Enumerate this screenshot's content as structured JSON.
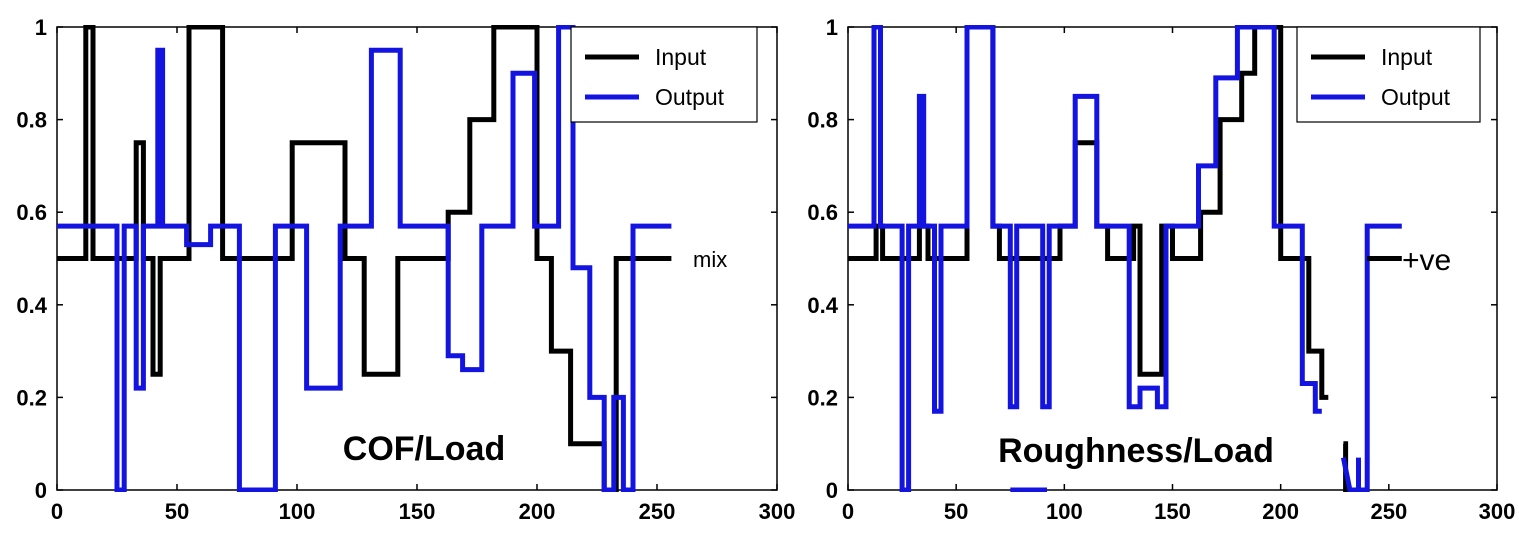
{
  "chart_data": [
    {
      "type": "line",
      "xlim": [
        0,
        300
      ],
      "ylim": [
        0,
        1
      ],
      "xticks": [
        0,
        50,
        100,
        150,
        200,
        250,
        300
      ],
      "yticks": [
        0,
        0.2,
        0.4,
        0.6,
        0.8,
        1
      ],
      "legend_position": "top-right",
      "annotation": "COF/Load",
      "side_label": "mix",
      "series": [
        {
          "name": "Input",
          "color": "#000000",
          "points": [
            [
              0,
              0.5
            ],
            [
              12,
              0.5
            ],
            [
              12,
              1
            ],
            [
              15,
              1
            ],
            [
              15,
              0.5
            ],
            [
              33,
              0.5
            ],
            [
              33,
              0.75
            ],
            [
              36,
              0.75
            ],
            [
              36,
              0.5
            ],
            [
              40,
              0.5
            ],
            [
              40,
              0.25
            ],
            [
              43,
              0.25
            ],
            [
              43,
              0.5
            ],
            [
              55,
              0.5
            ],
            [
              55,
              1
            ],
            [
              69,
              1
            ],
            [
              69,
              0.5
            ],
            [
              98,
              0.5
            ],
            [
              98,
              0.75
            ],
            [
              120,
              0.75
            ],
            [
              120,
              0.5
            ],
            [
              128,
              0.5
            ],
            [
              128,
              0.25
            ],
            [
              142,
              0.25
            ],
            [
              142,
              0.5
            ],
            [
              163,
              0.5
            ],
            [
              163,
              0.6
            ],
            [
              172,
              0.6
            ],
            [
              172,
              0.8
            ],
            [
              182,
              0.8
            ],
            [
              182,
              1
            ],
            [
              200,
              1
            ],
            [
              200,
              0.5
            ],
            [
              206,
              0.5
            ],
            [
              206,
              0.3
            ],
            [
              214,
              0.3
            ],
            [
              214,
              0.1
            ],
            [
              228,
              0.1
            ],
            [
              228,
              0
            ],
            [
              233,
              0
            ],
            [
              233,
              0.5
            ],
            [
              256,
              0.5
            ]
          ]
        },
        {
          "name": "Output",
          "color": "#1414e0",
          "points": [
            [
              0,
              0.57
            ],
            [
              25,
              0.57
            ],
            [
              25,
              0
            ],
            [
              28,
              0
            ],
            [
              28,
              0.57
            ],
            [
              33,
              0.57
            ],
            [
              33,
              0.22
            ],
            [
              36,
              0.22
            ],
            [
              36,
              0.57
            ],
            [
              42,
              0.57
            ],
            [
              42,
              0.95
            ],
            [
              44,
              0.95
            ],
            [
              44,
              0.57
            ],
            [
              54,
              0.57
            ],
            [
              54,
              0.53
            ],
            [
              64,
              0.53
            ],
            [
              64,
              0.57
            ],
            [
              76,
              0.57
            ],
            [
              76,
              0
            ],
            [
              91,
              0
            ],
            [
              91,
              0.57
            ],
            [
              104,
              0.57
            ],
            [
              104,
              0.22
            ],
            [
              118,
              0.22
            ],
            [
              118,
              0.57
            ],
            [
              131,
              0.57
            ],
            [
              131,
              0.95
            ],
            [
              143,
              0.95
            ],
            [
              143,
              0.57
            ],
            [
              163,
              0.57
            ],
            [
              163,
              0.29
            ],
            [
              169,
              0.29
            ],
            [
              169,
              0.26
            ],
            [
              177,
              0.26
            ],
            [
              177,
              0.57
            ],
            [
              190,
              0.57
            ],
            [
              190,
              0.9
            ],
            [
              199,
              0.9
            ],
            [
              199,
              0.57
            ],
            [
              209,
              0.57
            ],
            [
              209,
              1
            ],
            [
              215,
              1
            ],
            [
              215,
              0.48
            ],
            [
              222,
              0.48
            ],
            [
              222,
              0.2
            ],
            [
              228,
              0.2
            ],
            [
              228,
              0
            ],
            [
              232,
              0
            ],
            [
              232,
              0.2
            ],
            [
              236,
              0.2
            ],
            [
              236,
              0
            ],
            [
              240,
              0
            ],
            [
              240,
              0.57
            ],
            [
              256,
              0.57
            ]
          ]
        }
      ]
    },
    {
      "type": "line",
      "xlim": [
        0,
        300
      ],
      "ylim": [
        0,
        1
      ],
      "xticks": [
        0,
        50,
        100,
        150,
        200,
        250,
        300
      ],
      "yticks": [
        0,
        0.2,
        0.4,
        0.6,
        0.8,
        1
      ],
      "legend_position": "top-right",
      "annotation": "Roughness/Load",
      "side_label": "+ve",
      "series": [
        {
          "name": "Input",
          "color": "#000000",
          "points": [
            [
              0,
              0.5
            ],
            [
              13,
              0.5
            ],
            [
              13,
              0.57
            ],
            [
              16,
              0.57
            ],
            [
              16,
              0.5
            ],
            [
              33,
              0.5
            ],
            [
              33,
              0.57
            ],
            [
              37,
              0.57
            ],
            [
              37,
              0.5
            ],
            [
              55,
              0.5
            ],
            [
              55,
              1
            ],
            [
              67,
              1
            ],
            [
              67,
              0.57
            ],
            [
              70,
              0.57
            ],
            [
              70,
              0.5
            ],
            [
              98,
              0.5
            ],
            [
              98,
              0.57
            ],
            [
              105,
              0.57
            ],
            [
              105,
              0.75
            ],
            [
              115,
              0.75
            ],
            [
              115,
              0.57
            ],
            [
              120,
              0.57
            ],
            [
              120,
              0.5
            ],
            [
              132,
              0.5
            ],
            [
              132,
              0.57
            ],
            [
              135,
              0.57
            ],
            [
              135,
              0.25
            ],
            [
              145,
              0.25
            ],
            [
              145,
              0.57
            ],
            [
              150,
              0.57
            ],
            [
              150,
              0.5
            ],
            [
              163,
              0.5
            ],
            [
              163,
              0.6
            ],
            [
              172,
              0.6
            ],
            [
              172,
              0.8
            ],
            [
              182,
              0.8
            ],
            [
              182,
              0.9
            ],
            [
              188,
              0.9
            ],
            [
              188,
              1
            ],
            [
              200,
              1
            ],
            [
              200,
              0.5
            ],
            [
              213,
              0.5
            ],
            [
              213,
              0.3
            ],
            [
              219,
              0.3
            ],
            [
              219,
              0.2
            ],
            [
              222,
              0.2
            ]
          ]
        },
        {
          "name": "Output",
          "color": "#1414e0",
          "points": [
            [
              0,
              0.57
            ],
            [
              12,
              0.57
            ],
            [
              12,
              1
            ],
            [
              15,
              1
            ],
            [
              15,
              0.57
            ],
            [
              25,
              0.57
            ],
            [
              25,
              0
            ],
            [
              28,
              0
            ],
            [
              28,
              0.57
            ],
            [
              33,
              0.57
            ],
            [
              33,
              0.85
            ],
            [
              35,
              0.85
            ],
            [
              35,
              0.57
            ],
            [
              40,
              0.57
            ],
            [
              40,
              0.17
            ],
            [
              43,
              0.17
            ],
            [
              43,
              0.57
            ],
            [
              55,
              0.57
            ],
            [
              55,
              1
            ],
            [
              67,
              1
            ],
            [
              67,
              0.57
            ],
            [
              75,
              0.57
            ],
            [
              75,
              0.18
            ],
            [
              78,
              0.18
            ],
            [
              78,
              0.57
            ],
            [
              90,
              0.57
            ],
            [
              90,
              0.18
            ],
            [
              93,
              0.18
            ],
            [
              93,
              0.57
            ],
            [
              105,
              0.57
            ],
            [
              105,
              0.85
            ],
            [
              115,
              0.85
            ],
            [
              115,
              0.57
            ],
            [
              130,
              0.57
            ],
            [
              130,
              0.18
            ],
            [
              135,
              0.18
            ],
            [
              135,
              0.22
            ],
            [
              143,
              0.22
            ],
            [
              143,
              0.18
            ],
            [
              147,
              0.18
            ],
            [
              147,
              0.57
            ],
            [
              162,
              0.57
            ],
            [
              162,
              0.7
            ],
            [
              170,
              0.7
            ],
            [
              170,
              0.89
            ],
            [
              180,
              0.89
            ],
            [
              180,
              1
            ],
            [
              197,
              1
            ],
            [
              197,
              0.57
            ],
            [
              210,
              0.57
            ],
            [
              210,
              0.23
            ],
            [
              216,
              0.23
            ],
            [
              216,
              0.17
            ],
            [
              219,
              0.17
            ]
          ]
        },
        {
          "name": "",
          "color": "#000000",
          "points": [
            [
              229,
              0.1
            ],
            [
              230,
              0.1
            ],
            [
              230,
              0
            ],
            [
              232,
              0
            ]
          ]
        },
        {
          "name": "",
          "color": "#1414e0",
          "points": [
            [
              75,
              0
            ],
            [
              92,
              0
            ]
          ]
        },
        {
          "name": "",
          "color": "#1414e0",
          "points": [
            [
              229,
              0.07
            ],
            [
              232,
              0
            ],
            [
              236,
              0
            ],
            [
              236,
              0.07
            ],
            [
              236,
              0
            ],
            [
              240,
              0
            ],
            [
              240,
              0.57
            ],
            [
              256,
              0.57
            ]
          ]
        },
        {
          "name": "",
          "color": "#000000",
          "points": [
            [
              240,
              0.5
            ],
            [
              256,
              0.5
            ]
          ]
        }
      ]
    }
  ]
}
